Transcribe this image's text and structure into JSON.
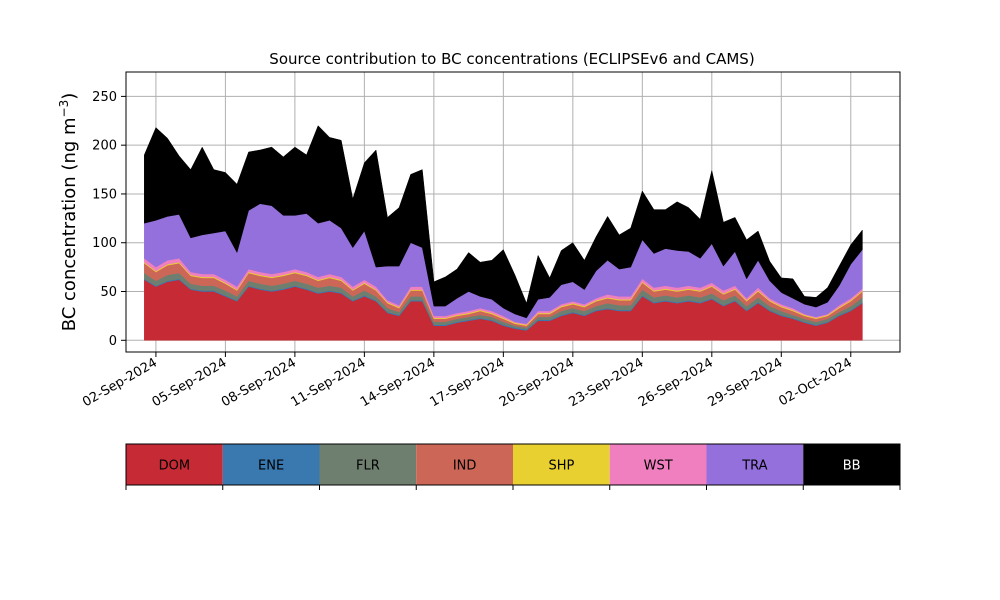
{
  "chart_data": {
    "type": "area",
    "stacked": true,
    "title": "Source contribution to BC concentrations (ECLIPSEv6 and CAMS)",
    "ylabel": "BC concentration (ng m",
    "ylabel_sup": "−3",
    "ylabel_suffix": ")",
    "xlabel": "",
    "grid": true,
    "xlim": [
      "2024-08-31T17:00",
      "2024-10-04T03:00"
    ],
    "ylim": [
      -12,
      275
    ],
    "yticks": [
      0,
      50,
      100,
      150,
      200,
      250
    ],
    "xticks": [
      {
        "date": "2024-09-02",
        "label": "02-Sep-2024"
      },
      {
        "date": "2024-09-05",
        "label": "05-Sep-2024"
      },
      {
        "date": "2024-09-08",
        "label": "08-Sep-2024"
      },
      {
        "date": "2024-09-11",
        "label": "11-Sep-2024"
      },
      {
        "date": "2024-09-14",
        "label": "14-Sep-2024"
      },
      {
        "date": "2024-09-17",
        "label": "17-Sep-2024"
      },
      {
        "date": "2024-09-20",
        "label": "20-Sep-2024"
      },
      {
        "date": "2024-09-23",
        "label": "23-Sep-2024"
      },
      {
        "date": "2024-09-26",
        "label": "26-Sep-2024"
      },
      {
        "date": "2024-09-29",
        "label": "29-Sep-2024"
      },
      {
        "date": "2024-10-02",
        "label": "02-Oct-2024"
      }
    ],
    "x": [
      "2024-09-01T12:00",
      "2024-09-02T00:00",
      "2024-09-02T12:00",
      "2024-09-03T00:00",
      "2024-09-03T12:00",
      "2024-09-04T00:00",
      "2024-09-04T12:00",
      "2024-09-05T00:00",
      "2024-09-05T12:00",
      "2024-09-06T00:00",
      "2024-09-06T12:00",
      "2024-09-07T00:00",
      "2024-09-07T12:00",
      "2024-09-08T00:00",
      "2024-09-08T12:00",
      "2024-09-09T00:00",
      "2024-09-09T12:00",
      "2024-09-10T00:00",
      "2024-09-10T12:00",
      "2024-09-11T00:00",
      "2024-09-11T12:00",
      "2024-09-12T00:00",
      "2024-09-12T12:00",
      "2024-09-13T00:00",
      "2024-09-13T12:00",
      "2024-09-14T00:00",
      "2024-09-14T12:00",
      "2024-09-15T00:00",
      "2024-09-15T12:00",
      "2024-09-16T00:00",
      "2024-09-16T12:00",
      "2024-09-17T00:00",
      "2024-09-17T12:00",
      "2024-09-18T00:00",
      "2024-09-18T12:00",
      "2024-09-19T00:00",
      "2024-09-19T12:00",
      "2024-09-20T00:00",
      "2024-09-20T12:00",
      "2024-09-21T00:00",
      "2024-09-21T12:00",
      "2024-09-22T00:00",
      "2024-09-22T12:00",
      "2024-09-23T00:00",
      "2024-09-23T12:00",
      "2024-09-24T00:00",
      "2024-09-24T12:00",
      "2024-09-25T00:00",
      "2024-09-25T12:00",
      "2024-09-26T00:00",
      "2024-09-26T12:00",
      "2024-09-27T00:00",
      "2024-09-27T12:00",
      "2024-09-28T00:00",
      "2024-09-28T12:00",
      "2024-09-29T00:00",
      "2024-09-29T12:00",
      "2024-09-30T00:00",
      "2024-09-30T12:00",
      "2024-10-01T00:00",
      "2024-10-01T12:00",
      "2024-10-02T00:00",
      "2024-10-02T12:00"
    ],
    "series": [
      {
        "name": "DOM",
        "color": "#c52a35",
        "values": [
          62,
          55,
          60,
          62,
          52,
          50,
          50,
          45,
          40,
          55,
          52,
          50,
          52,
          55,
          52,
          48,
          50,
          48,
          40,
          45,
          40,
          28,
          25,
          40,
          40,
          15,
          15,
          18,
          20,
          22,
          20,
          15,
          12,
          10,
          20,
          20,
          25,
          28,
          25,
          30,
          32,
          30,
          30,
          45,
          38,
          40,
          38,
          40,
          38,
          42,
          35,
          40,
          30,
          38,
          30,
          25,
          22,
          18,
          15,
          18,
          25,
          30,
          38
        ]
      },
      {
        "name": "ENE",
        "color": "#3a78b0",
        "values": [
          1,
          1,
          1,
          1,
          1,
          1,
          1,
          1,
          1,
          1,
          1,
          1,
          1,
          1,
          1,
          1,
          1,
          1,
          1,
          1,
          1,
          1,
          1,
          1,
          1,
          1,
          1,
          1,
          1,
          1,
          1,
          1,
          1,
          1,
          1,
          1,
          1,
          1,
          1,
          1,
          1,
          1,
          1,
          1,
          1,
          1,
          1,
          1,
          1,
          1,
          1,
          1,
          1,
          1,
          1,
          1,
          1,
          1,
          1,
          1,
          1,
          1,
          1
        ]
      },
      {
        "name": "FLR",
        "color": "#6f7f6f",
        "values": [
          6,
          5,
          6,
          6,
          5,
          5,
          5,
          5,
          4,
          5,
          5,
          5,
          5,
          5,
          5,
          5,
          5,
          5,
          4,
          5,
          4,
          4,
          3,
          4,
          4,
          3,
          3,
          3,
          3,
          3,
          3,
          3,
          2,
          2,
          3,
          3,
          4,
          4,
          4,
          4,
          5,
          5,
          5,
          6,
          5,
          5,
          5,
          5,
          5,
          5,
          5,
          5,
          4,
          5,
          4,
          4,
          3,
          3,
          3,
          3,
          3,
          4,
          5
        ]
      },
      {
        "name": "IND",
        "color": "#cc6657",
        "values": [
          10,
          9,
          10,
          10,
          8,
          8,
          8,
          7,
          6,
          8,
          8,
          8,
          8,
          8,
          8,
          7,
          8,
          7,
          6,
          7,
          6,
          5,
          4,
          6,
          6,
          3,
          3,
          3,
          3,
          4,
          3,
          3,
          2,
          2,
          3,
          3,
          4,
          4,
          4,
          5,
          5,
          5,
          5,
          7,
          6,
          6,
          6,
          6,
          6,
          7,
          6,
          6,
          5,
          6,
          5,
          4,
          4,
          3,
          3,
          3,
          4,
          5,
          6
        ]
      },
      {
        "name": "SHP",
        "color": "#e8d030",
        "values": [
          1,
          1,
          1,
          1,
          1,
          1,
          1,
          1,
          1,
          1,
          1,
          1,
          1,
          1,
          1,
          1,
          1,
          1,
          1,
          1,
          1,
          1,
          1,
          1,
          1,
          1,
          1,
          1,
          1,
          1,
          1,
          1,
          1,
          1,
          1,
          1,
          1,
          1,
          1,
          1,
          1,
          1,
          1,
          1,
          1,
          1,
          1,
          1,
          1,
          1,
          1,
          1,
          1,
          1,
          1,
          1,
          1,
          1,
          1,
          1,
          1,
          1,
          1
        ]
      },
      {
        "name": "WST",
        "color": "#f07fc0",
        "values": [
          4,
          4,
          4,
          4,
          3,
          3,
          3,
          3,
          3,
          3,
          3,
          3,
          3,
          3,
          3,
          3,
          3,
          3,
          3,
          3,
          3,
          2,
          2,
          3,
          3,
          2,
          2,
          2,
          2,
          2,
          2,
          2,
          1,
          1,
          2,
          2,
          2,
          2,
          2,
          2,
          3,
          3,
          3,
          3,
          3,
          3,
          3,
          3,
          3,
          3,
          3,
          3,
          2,
          3,
          2,
          2,
          2,
          1,
          1,
          1,
          2,
          2,
          2
        ]
      },
      {
        "name": "TRA",
        "color": "#9370db",
        "values": [
          36,
          48,
          45,
          45,
          35,
          40,
          42,
          50,
          35,
          60,
          70,
          70,
          58,
          55,
          60,
          55,
          55,
          50,
          40,
          50,
          20,
          35,
          40,
          45,
          40,
          10,
          10,
          15,
          20,
          12,
          12,
          8,
          8,
          6,
          12,
          14,
          20,
          20,
          15,
          28,
          35,
          28,
          30,
          40,
          35,
          38,
          38,
          35,
          30,
          40,
          25,
          35,
          20,
          28,
          18,
          12,
          10,
          10,
          10,
          12,
          20,
          35,
          40
        ]
      },
      {
        "name": "BB",
        "color": "#000000",
        "values": [
          70,
          95,
          80,
          60,
          70,
          90,
          65,
          60,
          70,
          60,
          55,
          60,
          60,
          70,
          60,
          100,
          85,
          90,
          50,
          70,
          120,
          50,
          60,
          70,
          80,
          25,
          30,
          30,
          40,
          35,
          40,
          60,
          40,
          15,
          45,
          20,
          35,
          40,
          30,
          35,
          45,
          35,
          40,
          50,
          45,
          40,
          50,
          45,
          40,
          75,
          45,
          35,
          40,
          30,
          20,
          15,
          20,
          8,
          10,
          15,
          20,
          20,
          20
        ]
      }
    ]
  }
}
